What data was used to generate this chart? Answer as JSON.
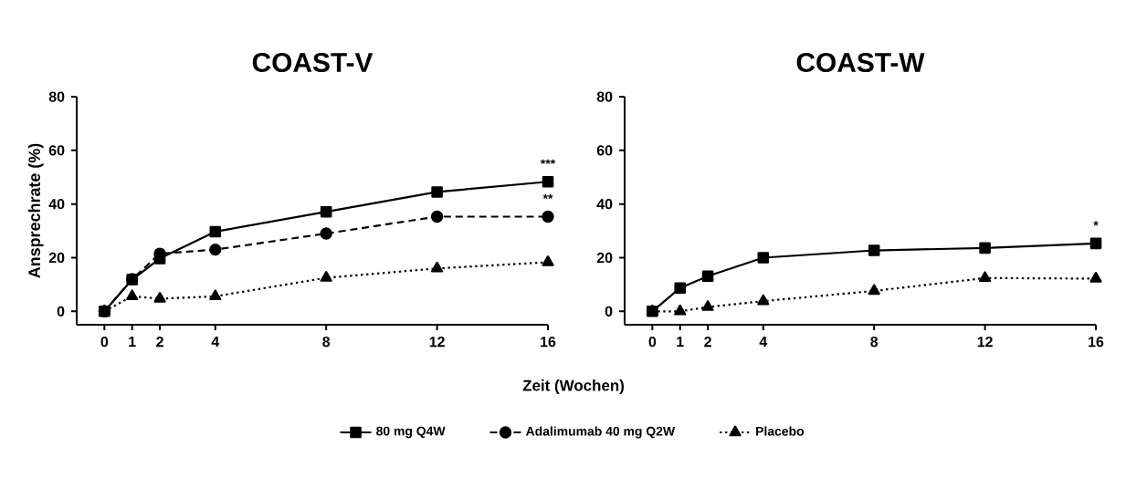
{
  "chart_data": [
    {
      "type": "line",
      "title": "COAST-V",
      "ylabel": "Ansprechrate (%)",
      "xlabel": "Zeit (Wochen)",
      "x": [
        0,
        1,
        2,
        4,
        8,
        12,
        16
      ],
      "xlim": [
        -1,
        16
      ],
      "xticks": [
        0,
        1,
        2,
        4,
        8,
        12,
        16
      ],
      "ylim": [
        -5,
        80
      ],
      "yticks": [
        0,
        20,
        40,
        60,
        80
      ],
      "grid": false,
      "legend": "bottom",
      "series": [
        {
          "name": "80 mg Q4W",
          "color": "#000000",
          "marker": "square",
          "line_style": "solid",
          "values": [
            0,
            11.8,
            19.7,
            29.7,
            37.1,
            44.5,
            48.3
          ]
        },
        {
          "name": "Adalimumab 40 mg Q2W",
          "color": "#000000",
          "marker": "circle",
          "line_style": "dashed",
          "values": [
            0,
            12,
            21.5,
            23,
            29,
            35.3,
            35.3
          ]
        },
        {
          "name": "Placebo",
          "color": "#000000",
          "marker": "triangle",
          "line_style": "dotted",
          "values": [
            0,
            5.6,
            4.7,
            5.6,
            12.5,
            16,
            18.3
          ]
        }
      ],
      "annotations": [
        "***",
        "**"
      ]
    },
    {
      "type": "line",
      "title": "COAST-W",
      "x": [
        0,
        1,
        2,
        4,
        8,
        12,
        16
      ],
      "xlim": [
        -1,
        16
      ],
      "xticks": [
        0,
        1,
        2,
        4,
        8,
        12,
        16
      ],
      "ylim": [
        -5,
        80
      ],
      "yticks": [
        0,
        20,
        40,
        60,
        80
      ],
      "grid": false,
      "series": [
        {
          "color": "#000000",
          "marker": "square",
          "line_style": "solid",
          "values": [
            0,
            8.7,
            13.1,
            20,
            22.7,
            23.6,
            25.3
          ]
        },
        {
          "color": "#000000",
          "marker": "triangle",
          "line_style": "dotted",
          "values": [
            0,
            0,
            1.6,
            3.8,
            7.6,
            12.4,
            12.2
          ]
        }
      ],
      "annotations": [
        "*"
      ]
    }
  ]
}
